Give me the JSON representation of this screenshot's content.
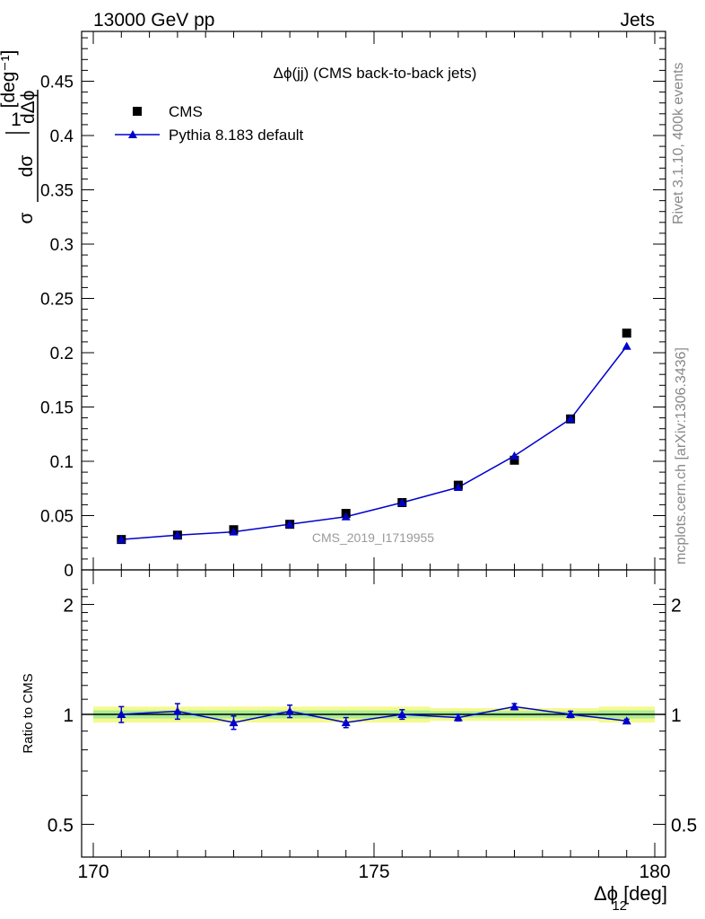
{
  "header": {
    "left": "13000 GeV pp",
    "right": "Jets"
  },
  "side_labels": {
    "top": "Rivet 3.1.10,  400k events",
    "bottom": "mcplots.cern.ch [arXiv:1306.3436]"
  },
  "chart_data": [
    {
      "type": "scatter",
      "title": "Δϕ(jj) (CMS back-to-back jets)",
      "watermark": "CMS_2019_I1719955",
      "ylabel": "1/σ dσ/dΔϕ12 [deg-1]",
      "xlim": [
        170,
        180
      ],
      "ylim": [
        0,
        0.5
      ],
      "yticks": [
        0,
        0.05,
        0.1,
        0.15,
        0.2,
        0.25,
        0.3,
        0.35,
        0.4,
        0.45
      ],
      "ytick_labels": [
        "0",
        "0.05",
        "0.1",
        "0.15",
        "0.2",
        "0.25",
        "0.3",
        "0.35",
        "0.4",
        "0.45"
      ],
      "legend_position": "top-left",
      "x": [
        170.5,
        171.5,
        172.5,
        173.5,
        174.5,
        175.5,
        176.5,
        177.5,
        178.5,
        179.5
      ],
      "series": [
        {
          "name": "CMS",
          "marker": "square",
          "color": "#000000",
          "values": [
            0.028,
            0.032,
            0.037,
            0.042,
            0.052,
            0.062,
            0.078,
            0.101,
            0.139,
            0.218
          ]
        },
        {
          "name": "Pythia 8.183 default",
          "marker": "triangle",
          "color": "#0000cc",
          "values": [
            0.028,
            0.032,
            0.035,
            0.042,
            0.049,
            0.062,
            0.076,
            0.105,
            0.139,
            0.206
          ]
        }
      ]
    },
    {
      "type": "scatter",
      "ylabel": "Ratio to CMS",
      "xlabel": "Δϕ12 [deg]",
      "xlim": [
        170,
        180
      ],
      "ylim": [
        0.35,
        2.3
      ],
      "xticks": [
        170,
        175,
        180
      ],
      "xtick_labels": [
        "170",
        "175",
        "180"
      ],
      "yticks": [
        0.5,
        1,
        2
      ],
      "ytick_labels": [
        "0.5",
        "1",
        "2"
      ],
      "x": [
        170.5,
        171.5,
        172.5,
        173.5,
        174.5,
        175.5,
        176.5,
        177.5,
        178.5,
        179.5
      ],
      "band_outer": [
        0.05,
        0.05,
        0.05,
        0.05,
        0.05,
        0.05,
        0.04,
        0.04,
        0.04,
        0.05
      ],
      "band_inner": [
        0.025,
        0.025,
        0.025,
        0.025,
        0.025,
        0.025,
        0.02,
        0.02,
        0.02,
        0.025
      ],
      "series": [
        {
          "name": "Pythia 8.183 default",
          "color": "#0000cc",
          "values": [
            1.0,
            1.02,
            0.95,
            1.02,
            0.95,
            1.0,
            0.98,
            1.05,
            1.0,
            0.96
          ],
          "errors": [
            0.05,
            0.05,
            0.04,
            0.04,
            0.03,
            0.03,
            0.02,
            0.02,
            0.02,
            0.01
          ]
        }
      ]
    }
  ]
}
